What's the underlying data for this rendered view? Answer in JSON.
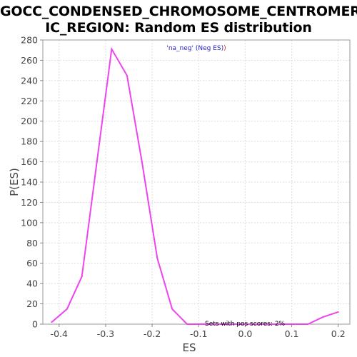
{
  "chart_data": {
    "type": "line",
    "title_lines": [
      "GOCC_CONDENSED_CHROMOSOME_CENTROMER",
      "IC_REGION: Random ES distribution"
    ],
    "xlabel": "ES",
    "ylabel": "P(ES)",
    "xlim": [
      -0.435,
      0.225
    ],
    "ylim": [
      0,
      280
    ],
    "x_ticks": [
      -0.4,
      -0.3,
      -0.2,
      -0.1,
      0.0,
      0.1,
      0.2
    ],
    "x_tick_labels": [
      "-0.4",
      "-0.3",
      "-0.2",
      "-0.1",
      "0.0",
      "0.1",
      "0.2"
    ],
    "y_ticks": [
      0,
      20,
      40,
      60,
      80,
      100,
      120,
      140,
      160,
      180,
      200,
      220,
      240,
      260,
      280
    ],
    "y_tick_labels": [
      "0",
      "20",
      "40",
      "60",
      "80",
      "100",
      "120",
      "140",
      "160",
      "180",
      "200",
      "220",
      "240",
      "260",
      "280"
    ],
    "grid": true,
    "series": [
      {
        "color": "#ee44ee",
        "x": [
          -0.416,
          -0.383,
          -0.351,
          -0.287,
          -0.254,
          -0.222,
          -0.189,
          -0.157,
          -0.125,
          -0.092,
          -0.06,
          -0.028,
          0.005,
          0.037,
          0.07,
          0.102,
          0.135,
          0.167,
          0.2
        ],
        "y": [
          2,
          15,
          47,
          271,
          245,
          160,
          65,
          15,
          0,
          0,
          0,
          0,
          0,
          0,
          0,
          0,
          0,
          7,
          12
        ]
      }
    ],
    "legend": {
      "placement": "top-center",
      "parts": [
        {
          "text": "'na_neg' (Neg ES)",
          "color": "#2222cc"
        },
        {
          "text": ")",
          "color": "#dd2222"
        }
      ]
    },
    "annotations": [
      {
        "text": "Sets with pos scores: 2%",
        "color": "#000000"
      }
    ]
  }
}
